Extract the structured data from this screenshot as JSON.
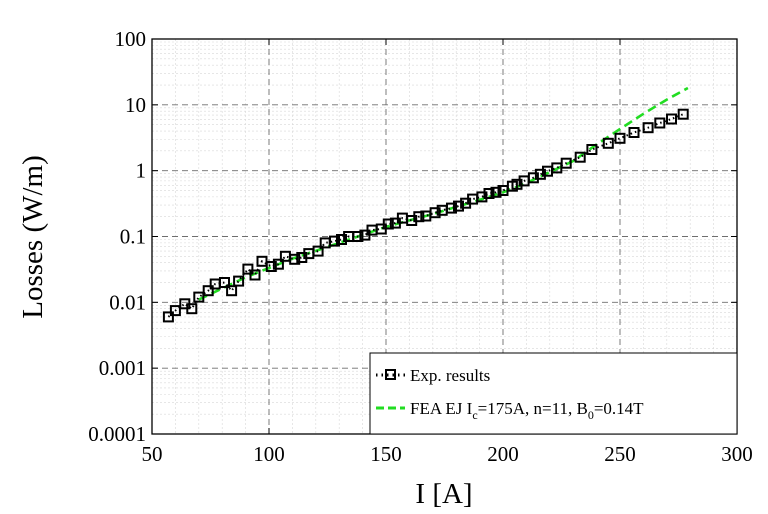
{
  "chart_data": {
    "type": "scatter",
    "title": "",
    "xlabel": "I [A]",
    "ylabel": "Losses (W/m)",
    "xlim": [
      50,
      300
    ],
    "ylim": [
      0.0001,
      100
    ],
    "yscale": "log",
    "grid": true,
    "legend_position": "bottom-right",
    "x_ticks": [
      50,
      100,
      150,
      200,
      250,
      300
    ],
    "x_tick_labels": [
      "50",
      "100",
      "150",
      "200",
      "250",
      "300"
    ],
    "y_ticks": [
      0.0001,
      0.001,
      0.01,
      0.1,
      1,
      10,
      100
    ],
    "y_tick_labels": [
      "0.0001",
      "0.001",
      "0.01",
      "0.1",
      "1",
      "10",
      "100"
    ],
    "series": [
      {
        "name": "Exp. results",
        "style": "markers-square-dotted",
        "color": "#000000",
        "points": [
          [
            57,
            0.006
          ],
          [
            60,
            0.0075
          ],
          [
            64,
            0.0095
          ],
          [
            67,
            0.008
          ],
          [
            70,
            0.012
          ],
          [
            74,
            0.015
          ],
          [
            77,
            0.019
          ],
          [
            81,
            0.02
          ],
          [
            84,
            0.015
          ],
          [
            87,
            0.021
          ],
          [
            91,
            0.032
          ],
          [
            94,
            0.026
          ],
          [
            97,
            0.042
          ],
          [
            101,
            0.035
          ],
          [
            104,
            0.038
          ],
          [
            107,
            0.05
          ],
          [
            111,
            0.045
          ],
          [
            114,
            0.048
          ],
          [
            117,
            0.055
          ],
          [
            121,
            0.06
          ],
          [
            124,
            0.08
          ],
          [
            128,
            0.085
          ],
          [
            131,
            0.09
          ],
          [
            134,
            0.1
          ],
          [
            138,
            0.1
          ],
          [
            141,
            0.105
          ],
          [
            144,
            0.125
          ],
          [
            148,
            0.13
          ],
          [
            151,
            0.155
          ],
          [
            154,
            0.16
          ],
          [
            157,
            0.19
          ],
          [
            161,
            0.175
          ],
          [
            164,
            0.2
          ],
          [
            167,
            0.205
          ],
          [
            171,
            0.23
          ],
          [
            174,
            0.25
          ],
          [
            178,
            0.27
          ],
          [
            181,
            0.29
          ],
          [
            184,
            0.32
          ],
          [
            187,
            0.37
          ],
          [
            191,
            0.4
          ],
          [
            194,
            0.45
          ],
          [
            197,
            0.47
          ],
          [
            200,
            0.5
          ],
          [
            204,
            0.58
          ],
          [
            206,
            0.62
          ],
          [
            209,
            0.7
          ],
          [
            213,
            0.78
          ],
          [
            216,
            0.88
          ],
          [
            219,
            0.98
          ],
          [
            223,
            1.1
          ],
          [
            227,
            1.3
          ],
          [
            233,
            1.6
          ],
          [
            238,
            2.1
          ],
          [
            245,
            2.6
          ],
          [
            250,
            3.1
          ],
          [
            256,
            3.8
          ],
          [
            262,
            4.5
          ],
          [
            267,
            5.3
          ],
          [
            272,
            6.1
          ],
          [
            277,
            7.2
          ]
        ]
      },
      {
        "name": "FEA EJ I_c=175A, n=11, B_0=0.14T",
        "style": "dashed-line",
        "color": "#22dd22",
        "points": [
          [
            70,
            0.011
          ],
          [
            90,
            0.024
          ],
          [
            110,
            0.046
          ],
          [
            130,
            0.08
          ],
          [
            150,
            0.14
          ],
          [
            170,
            0.22
          ],
          [
            190,
            0.36
          ],
          [
            200,
            0.47
          ],
          [
            210,
            0.65
          ],
          [
            220,
            0.95
          ],
          [
            230,
            1.4
          ],
          [
            240,
            2.5
          ],
          [
            250,
            4.3
          ],
          [
            260,
            7.3
          ],
          [
            270,
            12
          ],
          [
            279,
            18
          ]
        ]
      }
    ]
  },
  "legend": {
    "exp_label": "Exp. results",
    "fea_label_main": "FEA EJ I",
    "fea_sub_c": "c",
    "fea_label_mid": "=175A, n=11, B",
    "fea_sub_0": "0",
    "fea_label_end": "=0.14T"
  },
  "colors": {
    "exp": "#000000",
    "fea": "#22dd22",
    "grid_major": "#6e6e6e",
    "grid_minor": "#d8d8d8"
  }
}
